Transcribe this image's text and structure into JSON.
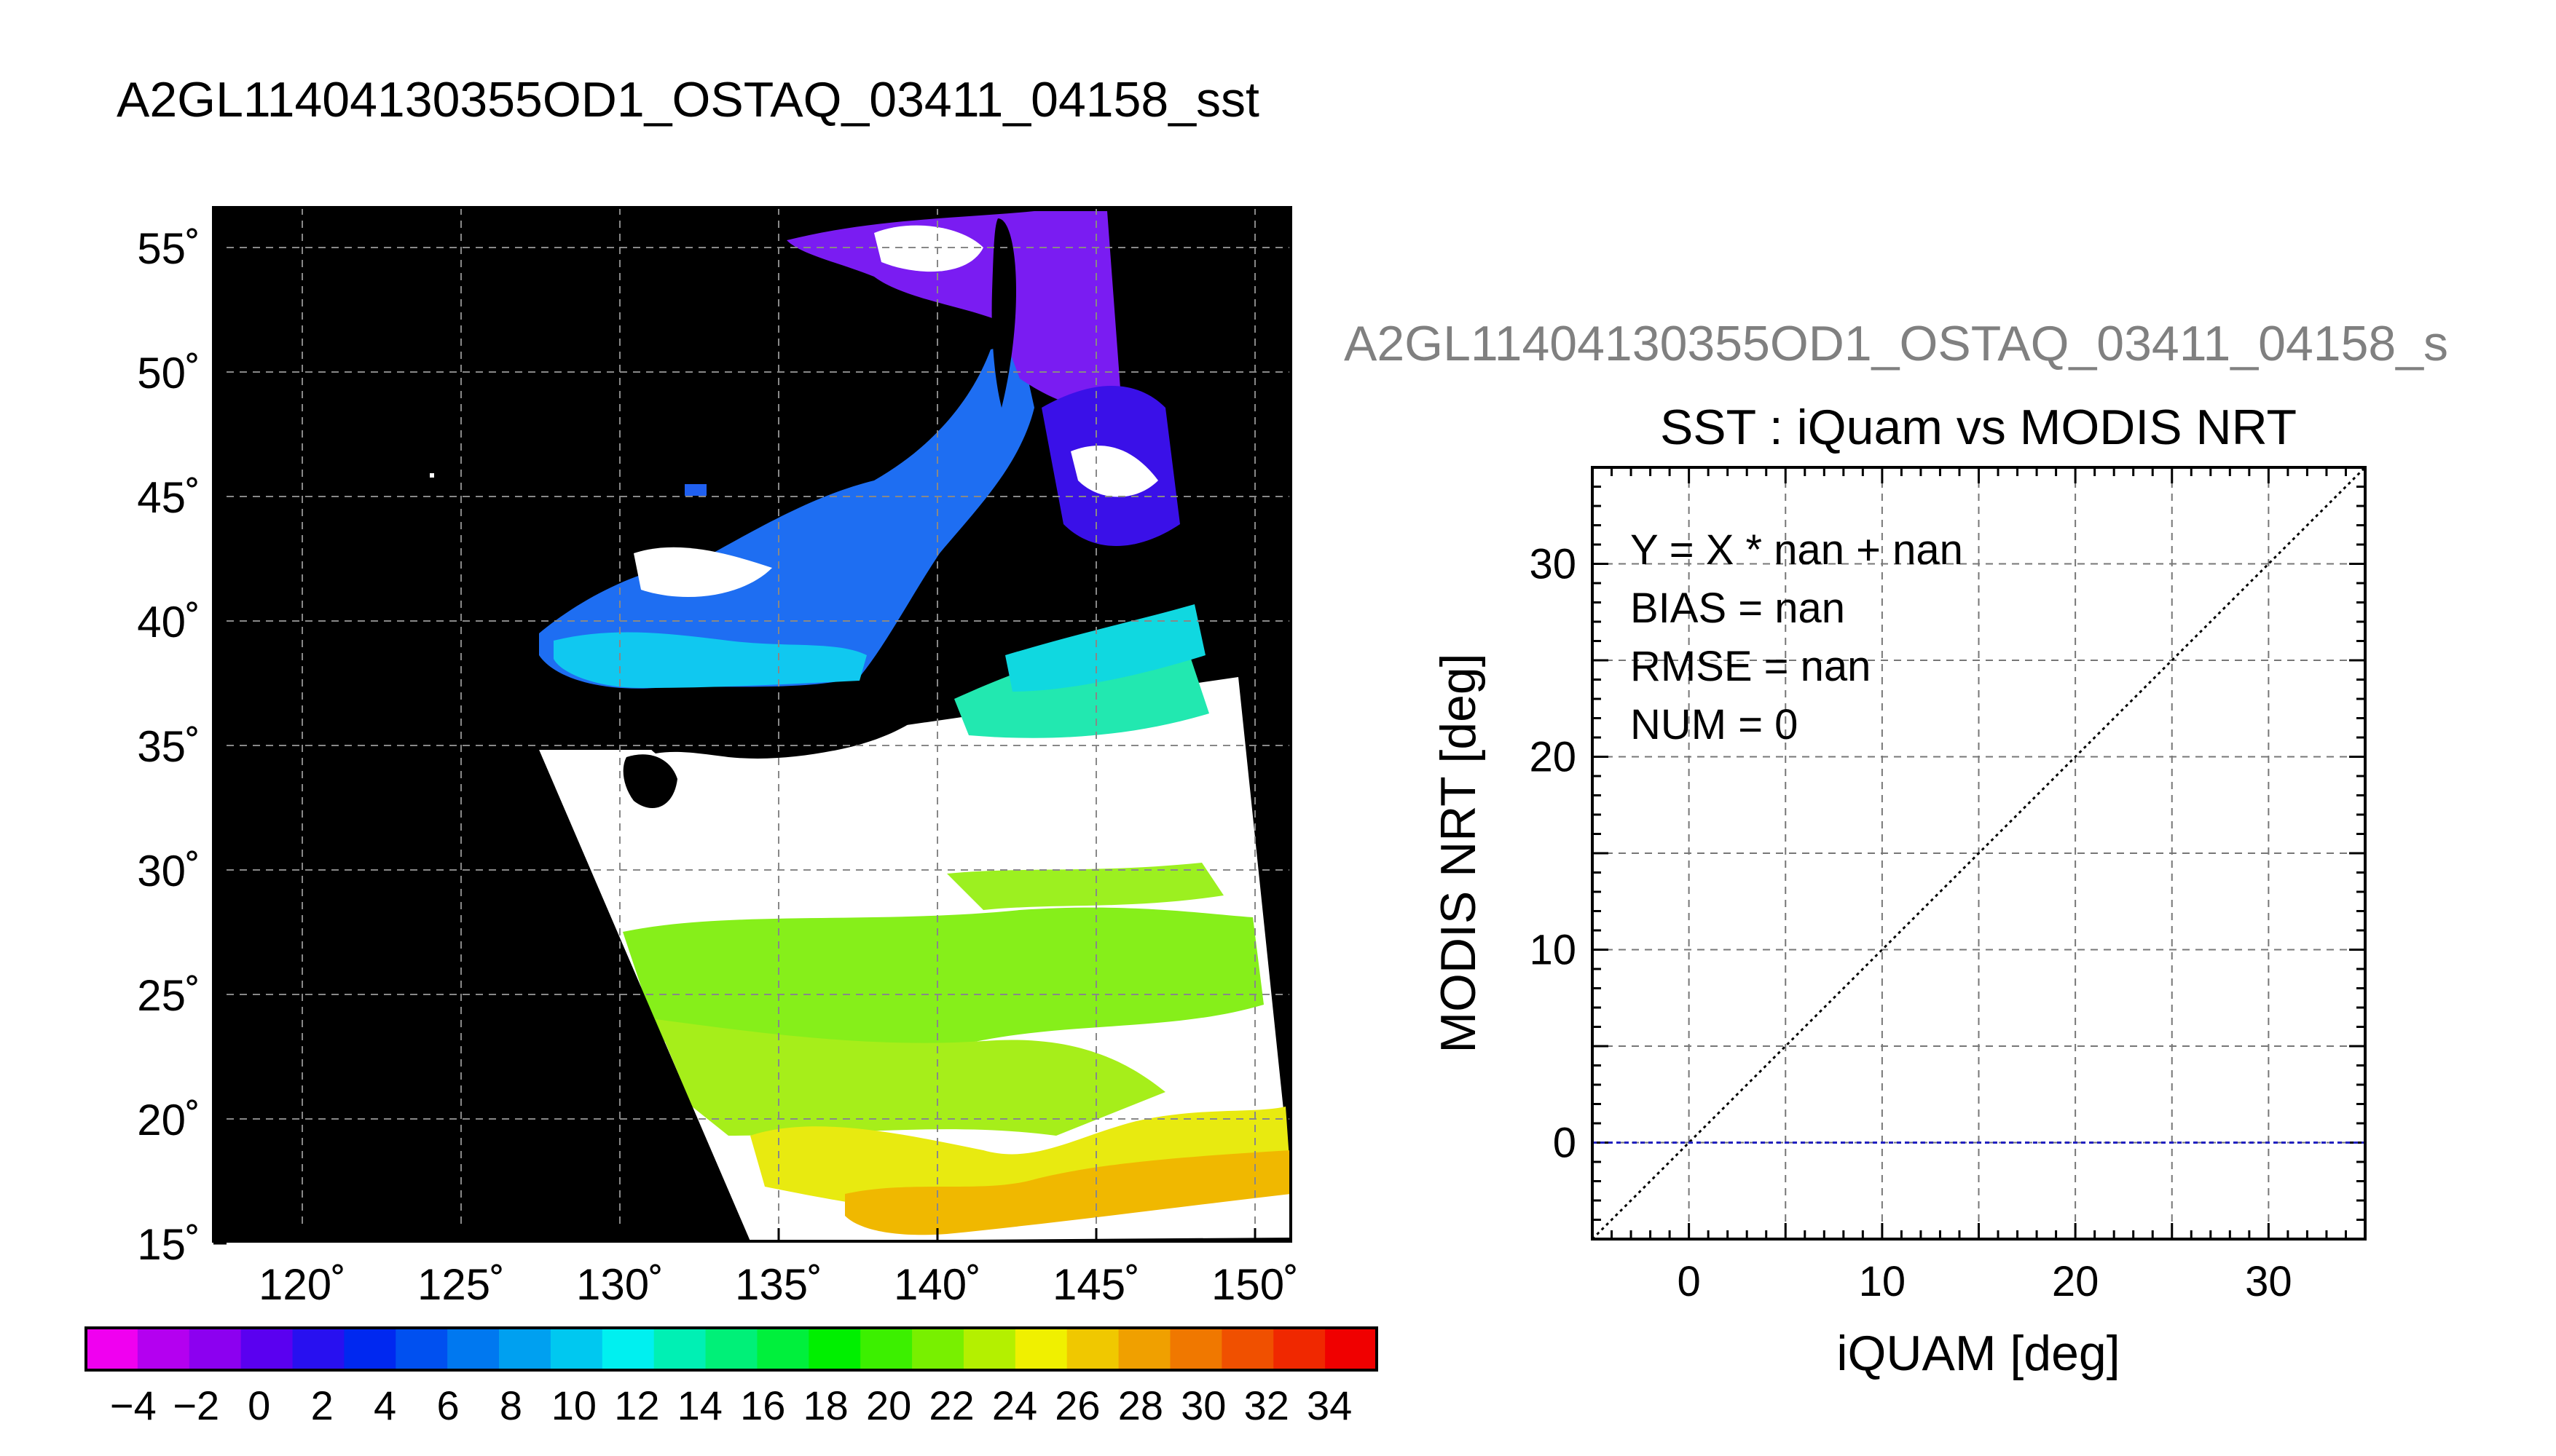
{
  "main_title": "A2GL11404130355OD1_OSTAQ_03411_04158_sst",
  "scatter_supertitle": "A2GL11404130355OD1_OSTAQ_03411_04158_s",
  "map": {
    "lat_labels": [
      "55˚",
      "50˚",
      "45˚",
      "40˚",
      "35˚",
      "30˚",
      "25˚",
      "20˚",
      "15˚"
    ],
    "lon_labels": [
      "120˚",
      "125˚",
      "130˚",
      "135˚",
      "140˚",
      "145˚",
      "150˚"
    ],
    "colorbar_ticks": [
      "−4",
      "−2",
      "0",
      "2",
      "4",
      "6",
      "8",
      "10",
      "12",
      "14",
      "16",
      "18",
      "20",
      "22",
      "24",
      "26",
      "28",
      "30",
      "32",
      "34"
    ],
    "colorbar_colors": [
      "#f000f0",
      "#b400f0",
      "#8c00f0",
      "#5a00f0",
      "#2810f0",
      "#0028f0",
      "#0050f0",
      "#0078f0",
      "#00a0f0",
      "#00c8f0",
      "#00f0f0",
      "#00f0b4",
      "#00f078",
      "#00f03c",
      "#00f000",
      "#3cf000",
      "#78f000",
      "#b4f000",
      "#f0f000",
      "#f0c800",
      "#f0a000",
      "#f07800",
      "#f05000",
      "#f02800",
      "#f00000"
    ]
  },
  "chart_data": {
    "type": "scatter",
    "title": "SST : iQuam vs MODIS NRT",
    "xlabel": "iQUAM [deg]",
    "ylabel": "MODIS NRT [deg]",
    "xlim": [
      -5,
      35
    ],
    "ylim": [
      -5,
      35
    ],
    "xticks": [
      "0",
      "10",
      "20",
      "30"
    ],
    "yticks": [
      "0",
      "10",
      "20",
      "30"
    ],
    "grid": true,
    "series": [],
    "reference_lines": [
      {
        "type": "y=x",
        "style": "dotted",
        "color": "#000000"
      },
      {
        "type": "y=0",
        "style": "dashed",
        "color": "#2020c0"
      }
    ],
    "stats": [
      "Y = X * nan + nan",
      "BIAS = nan",
      "RMSE = nan",
      "NUM = 0"
    ]
  }
}
